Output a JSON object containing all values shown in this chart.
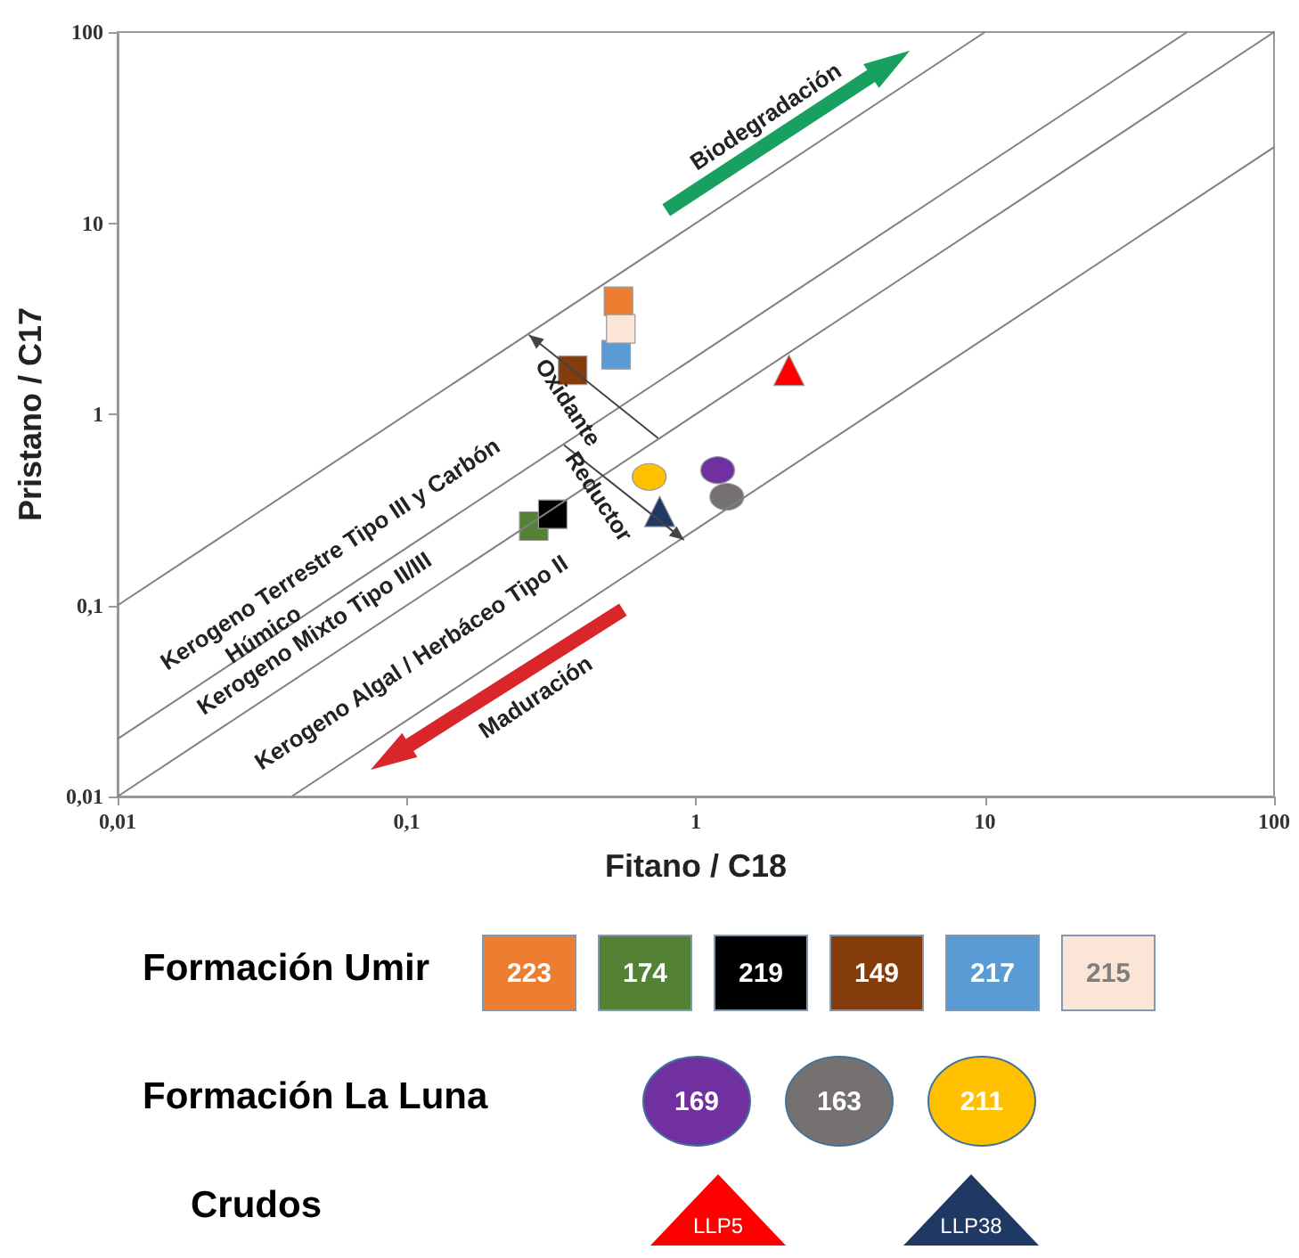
{
  "chart_data": {
    "type": "scatter",
    "xlabel": "Fitano / C18",
    "ylabel": "Pristano / C17",
    "log": "xy",
    "legend": "bottom",
    "xlim": [
      0.01,
      100
    ],
    "ylim": [
      0.01,
      100
    ],
    "xticks": [
      {
        "value": 0.01,
        "label": "0,01"
      },
      {
        "value": 0.1,
        "label": "0,1"
      },
      1,
      10,
      100
    ],
    "yticks": [
      {
        "value": 0.01,
        "label": "0,01"
      },
      {
        "value": 0.1,
        "label": "0,1"
      },
      1,
      10,
      100
    ],
    "series": [
      {
        "type": "line",
        "color": "#808080",
        "x": [
          0.01,
          10
        ],
        "values": [
          0.1,
          100
        ]
      },
      {
        "type": "line",
        "color": "#808080",
        "x": [
          0.01,
          50
        ],
        "values": [
          0.02,
          100
        ]
      },
      {
        "type": "line",
        "color": "#808080",
        "x": [
          0.01,
          100
        ],
        "values": [
          0.01,
          100
        ]
      },
      {
        "type": "line",
        "color": "#808080",
        "x": [
          0.04,
          100
        ],
        "values": [
          0.01,
          25
        ]
      },
      {
        "name": "223",
        "color": "#ed7d31",
        "marker": "square",
        "x": [
          0.54
        ],
        "values": [
          3.9
        ]
      },
      {
        "name": "174",
        "color": "#548235",
        "marker": "square",
        "x": [
          0.275
        ],
        "values": [
          0.26
        ]
      },
      {
        "name": "219",
        "color": "#000000",
        "marker": "square",
        "x": [
          0.32
        ],
        "values": [
          0.3
        ]
      },
      {
        "name": "149",
        "color": "#843c0c",
        "marker": "square",
        "x": [
          0.375
        ],
        "values": [
          1.7
        ]
      },
      {
        "name": "217",
        "color": "#5b9bd5",
        "marker": "square",
        "x": [
          0.53
        ],
        "values": [
          2.05
        ]
      },
      {
        "name": "215",
        "color": "#fbe5d6",
        "marker": "square",
        "x": [
          0.55
        ],
        "values": [
          2.8
        ]
      },
      {
        "name": "169",
        "color": "#7030a0",
        "marker": "circle",
        "x": [
          1.19
        ],
        "values": [
          0.51
        ]
      },
      {
        "name": "163",
        "color": "#767171",
        "marker": "circle",
        "x": [
          1.28
        ],
        "values": [
          0.37
        ]
      },
      {
        "name": "211",
        "color": "#ffc000",
        "marker": "circle",
        "x": [
          0.69
        ],
        "values": [
          0.47
        ]
      },
      {
        "name": "LLP5",
        "color": "#ff0000",
        "marker": "triangle",
        "x": [
          2.1
        ],
        "values": [
          1.7
        ]
      },
      {
        "name": "LLP38",
        "color": "#1f3864",
        "marker": "triangle",
        "x": [
          0.75
        ],
        "values": [
          0.31
        ]
      }
    ],
    "annotations": [
      "Kerogeno Terrestre Tipo III y Carbón\nHúmico",
      "Kerogeno Mixto Tipo II/III",
      "Kerogeno Algal / Herbáceo Tipo II",
      "Biodegradación",
      "Maduración",
      {
        "text": "Oxidante",
        "x": 0.265,
        "y": 2.6
      },
      {
        "text": "Reductor",
        "x": 0.91,
        "y": 0.22
      },
      "Formación Umir",
      "Formación La Luna",
      "Crudos"
    ]
  }
}
